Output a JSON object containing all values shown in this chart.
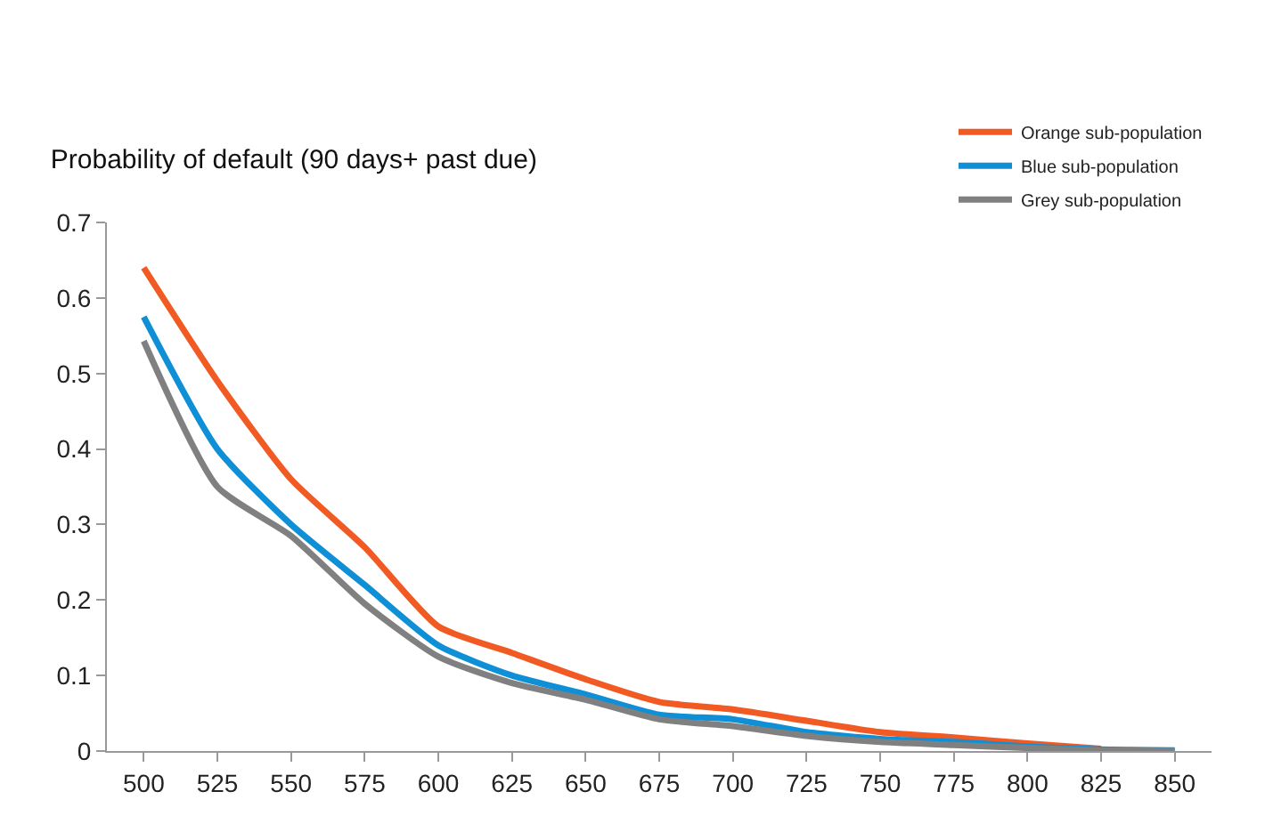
{
  "chart_data": {
    "type": "line",
    "title": "Probability of default (90 days+ past due)",
    "categories": [
      "500",
      "525",
      "550",
      "575",
      "600",
      "625",
      "650",
      "675",
      "700",
      "725",
      "750",
      "775",
      "800",
      "825",
      "850"
    ],
    "series": [
      {
        "name": "Orange sub-population",
        "color": "#f15a22",
        "values": [
          0.64,
          0.49,
          0.36,
          0.27,
          0.165,
          0.13,
          0.095,
          0.065,
          0.055,
          0.04,
          0.025,
          0.018,
          0.01,
          0.003,
          null
        ]
      },
      {
        "name": "Blue sub-population",
        "color": "#0f8fd6",
        "values": [
          0.575,
          0.4,
          0.3,
          0.22,
          0.14,
          0.1,
          0.075,
          0.048,
          0.042,
          0.025,
          0.016,
          0.012,
          0.006,
          0.002,
          0.001
        ]
      },
      {
        "name": "Grey sub-population",
        "color": "#808080",
        "values": [
          0.543,
          0.35,
          0.285,
          0.195,
          0.125,
          0.09,
          0.068,
          0.042,
          0.033,
          0.02,
          0.012,
          0.008,
          0.004,
          0.001,
          0
        ]
      }
    ],
    "ylim": [
      0,
      0.7
    ],
    "yticks": [
      0,
      0.1,
      0.2,
      0.3,
      0.4,
      0.5,
      0.6,
      0.7
    ],
    "grid": false,
    "legend": "top right",
    "marker": "none",
    "line_style": "solid"
  }
}
